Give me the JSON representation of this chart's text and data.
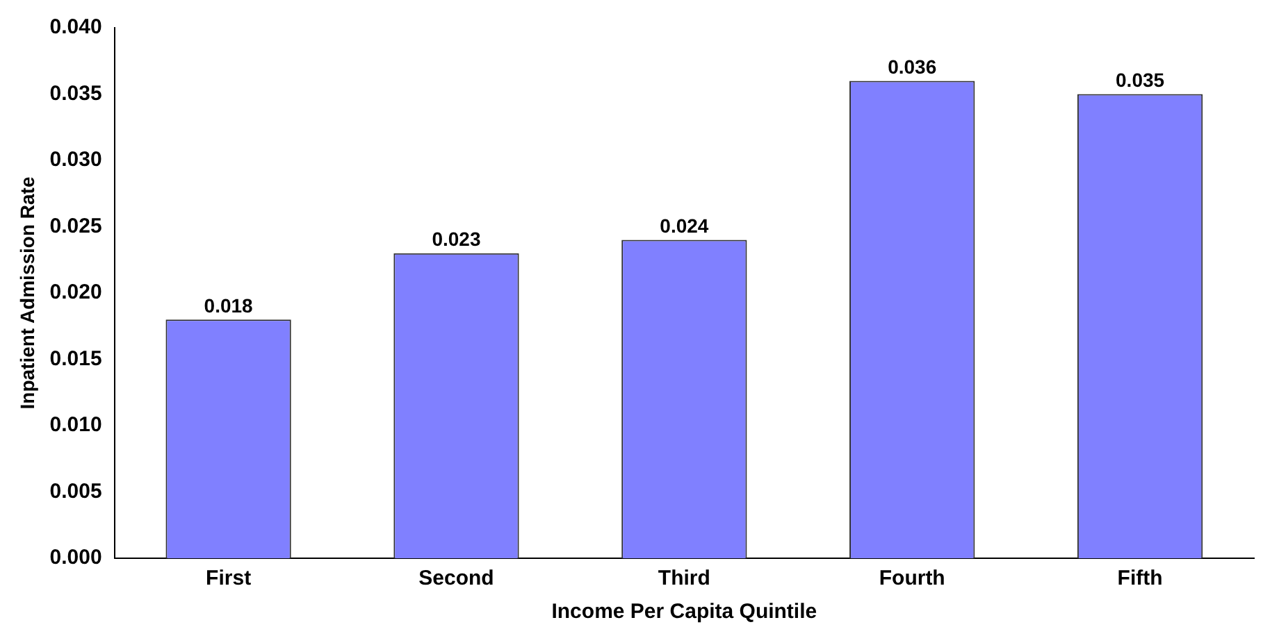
{
  "chart_data": {
    "type": "bar",
    "xlabel": "Income Per Capita Quintile",
    "ylabel": "Inpatient Admission Rate",
    "categories": [
      "First",
      "Second",
      "Third",
      "Fourth",
      "Fifth"
    ],
    "values": [
      0.018,
      0.023,
      0.024,
      0.036,
      0.035
    ],
    "color": "#8080ff",
    "ylim": [
      0,
      0.04
    ],
    "yticks": [
      {
        "value": 0,
        "label": "0.000"
      },
      {
        "value": 0.005,
        "label": "0.005"
      },
      {
        "value": 0.01,
        "label": "0.010"
      },
      {
        "value": 0.015,
        "label": "0.015"
      },
      {
        "value": 0.02,
        "label": "0.020"
      },
      {
        "value": 0.025,
        "label": "0.025"
      },
      {
        "value": 0.03,
        "label": "0.030"
      },
      {
        "value": 0.035,
        "label": "0.035"
      },
      {
        "value": 0.04,
        "label": "0.040"
      }
    ],
    "grid": false,
    "legend": false,
    "data_labels": true
  }
}
